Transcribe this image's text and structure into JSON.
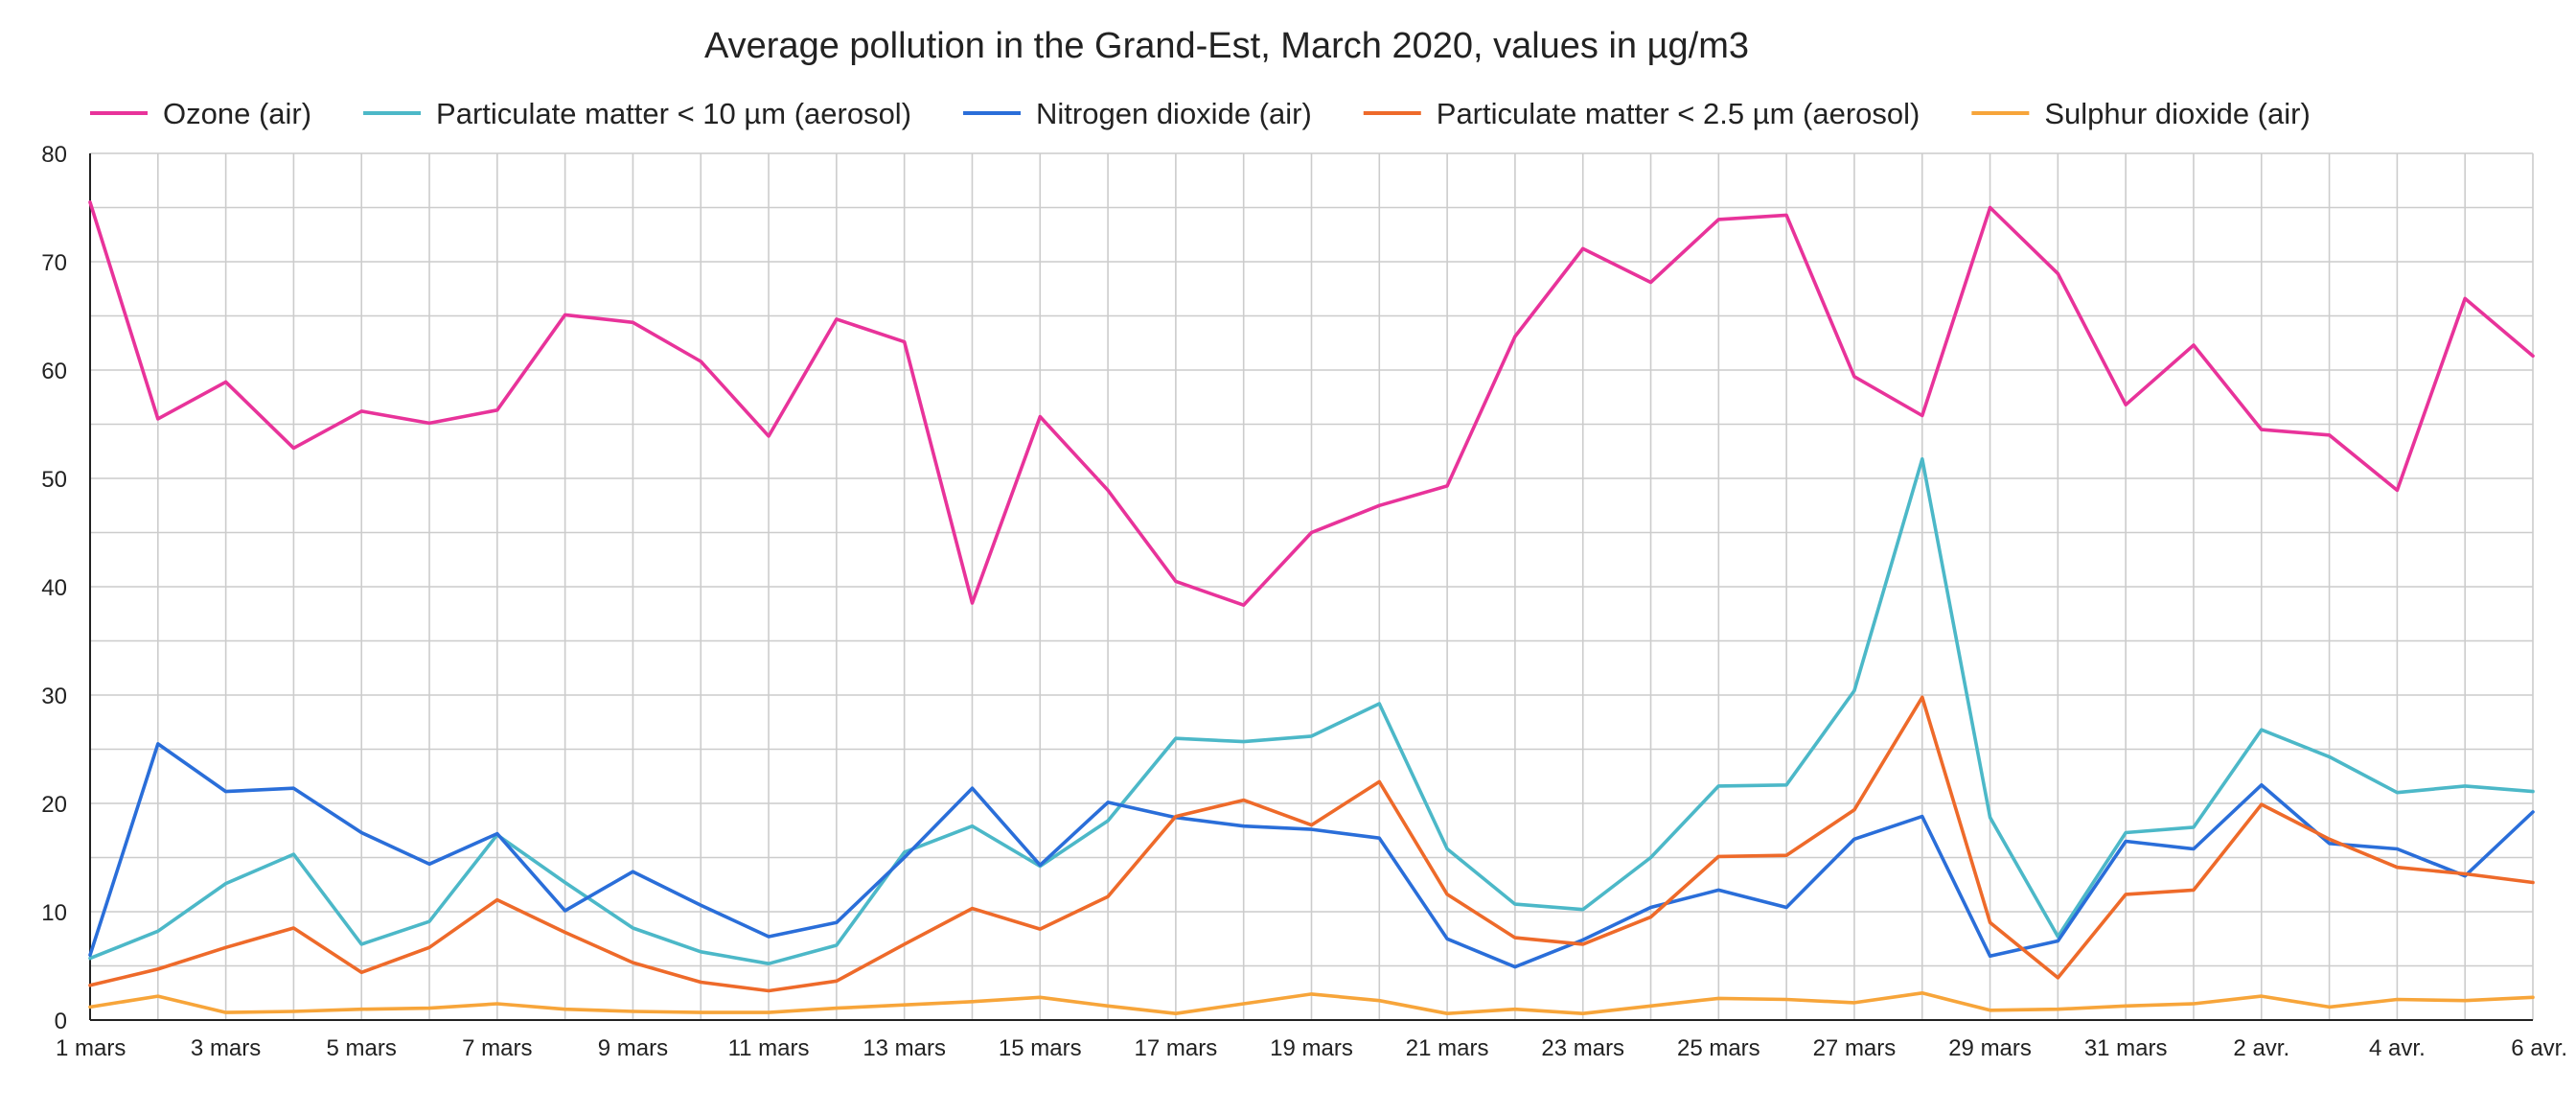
{
  "chart_data": {
    "type": "line",
    "title": "Average pollution in the Grand-Est, March 2020, values in µg/m3",
    "xlabel": "",
    "ylabel": "",
    "ylim": [
      0,
      80
    ],
    "yticks": [
      0,
      10,
      20,
      30,
      40,
      50,
      60,
      70,
      80
    ],
    "legend_position": "top",
    "grid": true,
    "x": [
      "1 mars",
      "2 mars",
      "3 mars",
      "4 mars",
      "5 mars",
      "6 mars",
      "7 mars",
      "8 mars",
      "9 mars",
      "10 mars",
      "11 mars",
      "12 mars",
      "13 mars",
      "14 mars",
      "15 mars",
      "16 mars",
      "17 mars",
      "18 mars",
      "19 mars",
      "20 mars",
      "21 mars",
      "22 mars",
      "23 mars",
      "24 mars",
      "25 mars",
      "26 mars",
      "27 mars",
      "28 mars",
      "29 mars",
      "30 mars",
      "31 mars",
      "1 avr.",
      "2 avr.",
      "3 avr.",
      "4 avr.",
      "5 avr.",
      "6 avr."
    ],
    "xtick_labels": [
      "1 mars",
      "3 mars",
      "5 mars",
      "7 mars",
      "9 mars",
      "11 mars",
      "13 mars",
      "15 mars",
      "17 mars",
      "19 mars",
      "21 mars",
      "23 mars",
      "25 mars",
      "27 mars",
      "29 mars",
      "31 mars",
      "2 avr.",
      "4 avr.",
      "6 avr."
    ],
    "series": [
      {
        "name": "Ozone (air)",
        "color": "#e8339a",
        "values": [
          75.5,
          55.5,
          58.9,
          52.8,
          56.2,
          55.1,
          56.3,
          65.1,
          64.4,
          60.8,
          53.9,
          64.7,
          62.6,
          38.5,
          55.7,
          48.9,
          40.5,
          38.3,
          45.0,
          47.5,
          49.3,
          63.1,
          71.2,
          68.1,
          73.9,
          74.3,
          59.4,
          55.8,
          75.0,
          68.9,
          56.8,
          62.3,
          54.5,
          54.0,
          48.9,
          66.6,
          61.3
        ]
      },
      {
        "name": "Particulate matter < 10 µm (aerosol)",
        "color": "#4cb8c8",
        "values": [
          5.7,
          8.2,
          12.6,
          15.3,
          7.0,
          9.1,
          17.1,
          12.7,
          8.5,
          6.3,
          5.2,
          6.9,
          15.5,
          17.9,
          14.2,
          18.4,
          26.0,
          25.7,
          26.2,
          29.2,
          15.8,
          10.7,
          10.2,
          15.0,
          21.6,
          21.7,
          30.4,
          51.8,
          18.7,
          7.7,
          17.3,
          17.8,
          26.8,
          24.3,
          21.0,
          21.6,
          21.1
        ]
      },
      {
        "name": "Nitrogen dioxide (air)",
        "color": "#2a6ed9",
        "values": [
          6.0,
          25.5,
          21.1,
          21.4,
          17.3,
          14.4,
          17.2,
          10.1,
          13.7,
          10.6,
          7.7,
          9.0,
          15.0,
          21.4,
          14.3,
          20.1,
          18.7,
          17.9,
          17.6,
          16.8,
          7.5,
          4.9,
          7.4,
          10.4,
          12.0,
          10.4,
          16.7,
          18.8,
          5.9,
          7.3,
          16.5,
          15.8,
          21.7,
          16.3,
          15.8,
          13.3,
          19.2
        ]
      },
      {
        "name": "Particulate matter < 2.5 µm (aerosol)",
        "color": "#ee6a2a",
        "values": [
          3.2,
          4.7,
          6.7,
          8.5,
          4.4,
          6.7,
          11.1,
          8.1,
          5.3,
          3.5,
          2.7,
          3.6,
          7.0,
          10.3,
          8.4,
          11.4,
          18.8,
          20.3,
          18.0,
          22.0,
          11.6,
          7.6,
          7.0,
          9.5,
          15.1,
          15.2,
          19.4,
          29.8,
          9.0,
          3.9,
          11.6,
          12.0,
          19.9,
          16.7,
          14.1,
          13.5,
          12.7
        ]
      },
      {
        "name": "Sulphur dioxide (air)",
        "color": "#f7a53a",
        "values": [
          1.2,
          2.2,
          0.7,
          0.8,
          1.0,
          1.1,
          1.5,
          1.0,
          0.8,
          0.7,
          0.7,
          1.1,
          1.4,
          1.7,
          2.1,
          1.3,
          0.6,
          1.5,
          2.4,
          1.8,
          0.6,
          1.0,
          0.6,
          1.3,
          2.0,
          1.9,
          1.6,
          2.5,
          0.9,
          1.0,
          1.3,
          1.5,
          2.2,
          1.2,
          1.9,
          1.8,
          2.1
        ]
      }
    ]
  }
}
